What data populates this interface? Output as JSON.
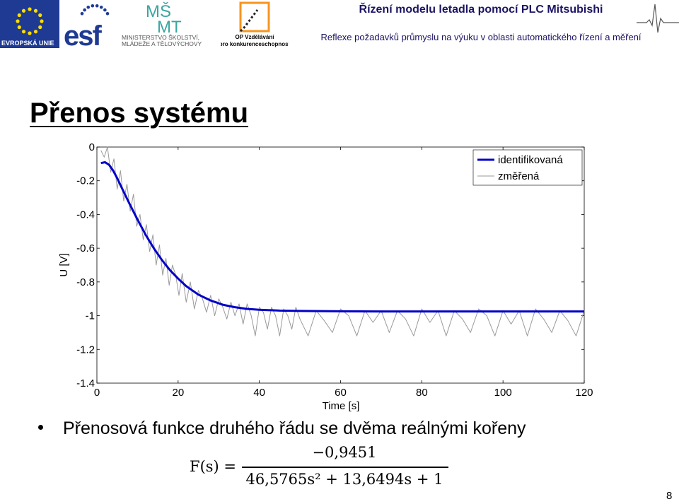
{
  "header": {
    "eu_label": "EVROPSKÁ UNIE",
    "esf_logo_text": "esf",
    "ministry_line1": "MINISTERSTVO ŠKOLSTVÍ,",
    "ministry_line2": "MLÁDEŽE A TĚLOVÝCHOVY",
    "op_line1": "OP Vzdělávání",
    "op_line2": "pro konkurenceschopnost",
    "title": "Řízení modelu letadla pomocí PLC Mitsubishi",
    "subtitle": "Reflexe požadavků průmyslu na výuku v oblasti automatického řízení a měření"
  },
  "slide": {
    "title": "Přenos systému",
    "bullet": "Přenosová funkce druhého řádu se dvěma reálnými kořeny",
    "formula": {
      "lhs": "F(s) =",
      "numerator": "−0,9451",
      "denominator": "46,5765s² + 13,6494s + 1"
    },
    "page_number": "8"
  },
  "colors": {
    "header_text": "#1b1464",
    "eu_blue": "#1f3a93",
    "esf_blue": "#1f3a93",
    "identified_line": "#0000c8",
    "measured_line": "#9a9a9a"
  },
  "chart_data": {
    "type": "line",
    "xlabel": "Time [s]",
    "ylabel": "U [V]",
    "xlim": [
      0,
      120
    ],
    "ylim": [
      -1.4,
      0
    ],
    "x_ticks": [
      "0",
      "20",
      "40",
      "60",
      "80",
      "100",
      "120"
    ],
    "y_ticks": [
      "0",
      "-0.2",
      "-0.4",
      "-0.6",
      "-0.8",
      "-1",
      "-1.2",
      "-1.4"
    ],
    "legend_position": "top-right",
    "grid": false,
    "series": [
      {
        "name": "identifikovaná",
        "color": "#0000c8",
        "x": [
          1,
          2,
          3,
          4,
          5,
          6,
          8,
          10,
          12,
          14,
          16,
          18,
          20,
          22,
          25,
          28,
          31,
          34,
          37,
          40,
          45,
          50,
          55,
          60,
          70,
          80,
          90,
          100,
          120
        ],
        "y": [
          -0.095,
          -0.09,
          -0.105,
          -0.14,
          -0.185,
          -0.235,
          -0.335,
          -0.43,
          -0.52,
          -0.6,
          -0.67,
          -0.73,
          -0.78,
          -0.825,
          -0.875,
          -0.91,
          -0.935,
          -0.95,
          -0.96,
          -0.965,
          -0.97,
          -0.972,
          -0.973,
          -0.974,
          -0.975,
          -0.975,
          -0.975,
          -0.975,
          -0.975
        ]
      },
      {
        "name": "změřená",
        "color": "#9a9a9a",
        "x": [
          1,
          1.8,
          2.6,
          3.4,
          4.2,
          5,
          5.8,
          6.6,
          7.4,
          8.2,
          9,
          9.8,
          10.6,
          11.4,
          12.2,
          13,
          13.8,
          14.6,
          15.4,
          16.2,
          17,
          17.8,
          18.6,
          19.4,
          20.2,
          21,
          22,
          23,
          24,
          25,
          26,
          27,
          28,
          29,
          30,
          31,
          32,
          33,
          34,
          35,
          36,
          37,
          38,
          39,
          40,
          41,
          42,
          43,
          44,
          45,
          46,
          47,
          48,
          49,
          50,
          52,
          54,
          56,
          58,
          60,
          62,
          64,
          66,
          68,
          70,
          72,
          74,
          76,
          78,
          80,
          82,
          84,
          86,
          88,
          90,
          92,
          94,
          96,
          98,
          100,
          102,
          104,
          106,
          108,
          110,
          112,
          114,
          116,
          118,
          120
        ],
        "y": [
          -0.02,
          -0.06,
          0.0,
          -0.15,
          -0.07,
          -0.25,
          -0.14,
          -0.32,
          -0.22,
          -0.38,
          -0.28,
          -0.47,
          -0.4,
          -0.55,
          -0.46,
          -0.62,
          -0.52,
          -0.7,
          -0.58,
          -0.76,
          -0.66,
          -0.82,
          -0.7,
          -0.76,
          -0.88,
          -0.75,
          -0.92,
          -0.8,
          -0.96,
          -0.85,
          -0.9,
          -0.98,
          -0.88,
          -1.0,
          -0.9,
          -0.95,
          -1.02,
          -0.92,
          -1.0,
          -0.93,
          -1.05,
          -0.93,
          -1.0,
          -1.12,
          -0.95,
          -0.98,
          -1.08,
          -0.95,
          -1.0,
          -1.12,
          -0.96,
          -1.0,
          -1.08,
          -0.95,
          -1.02,
          -1.12,
          -0.97,
          -1.03,
          -1.1,
          -0.96,
          -1.0,
          -1.12,
          -0.97,
          -1.04,
          -0.97,
          -1.1,
          -0.97,
          -1.02,
          -1.12,
          -0.96,
          -1.04,
          -0.97,
          -1.12,
          -0.97,
          -1.02,
          -1.1,
          -0.96,
          -1.0,
          -1.12,
          -0.97,
          -1.05,
          -0.97,
          -1.12,
          -0.96,
          -1.02,
          -1.1,
          -0.97,
          -1.03,
          -1.12,
          -0.97
        ]
      }
    ]
  }
}
